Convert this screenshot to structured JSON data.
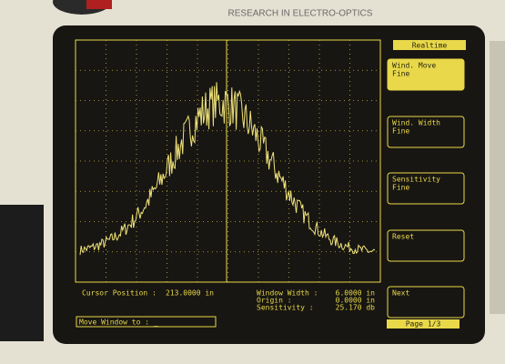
{
  "header": {
    "brand": "RESEARCH IN ELECTRO-OPTICS"
  },
  "softkeys": {
    "mode": "Realtime",
    "keys": [
      {
        "line1": "Wind. Move",
        "line2": "Fine"
      },
      {
        "line1": "Wind. Width",
        "line2": "Fine"
      },
      {
        "line1": "Sensitivity",
        "line2": "Fine"
      },
      {
        "line1": "Reset"
      },
      {
        "line1": "Next"
      }
    ],
    "page": "Page 1/3"
  },
  "status": {
    "cursor_label": "Cursor Position :",
    "cursor_value": "213.0000 in",
    "rows": [
      {
        "label": "Window Width :",
        "value": "6.0000 in"
      },
      {
        "label": "Origin :",
        "value": "0.0000 in"
      },
      {
        "label": "Sensitivity :",
        "value": "25.170 db"
      }
    ]
  },
  "input": "Move Window to : _"
}
